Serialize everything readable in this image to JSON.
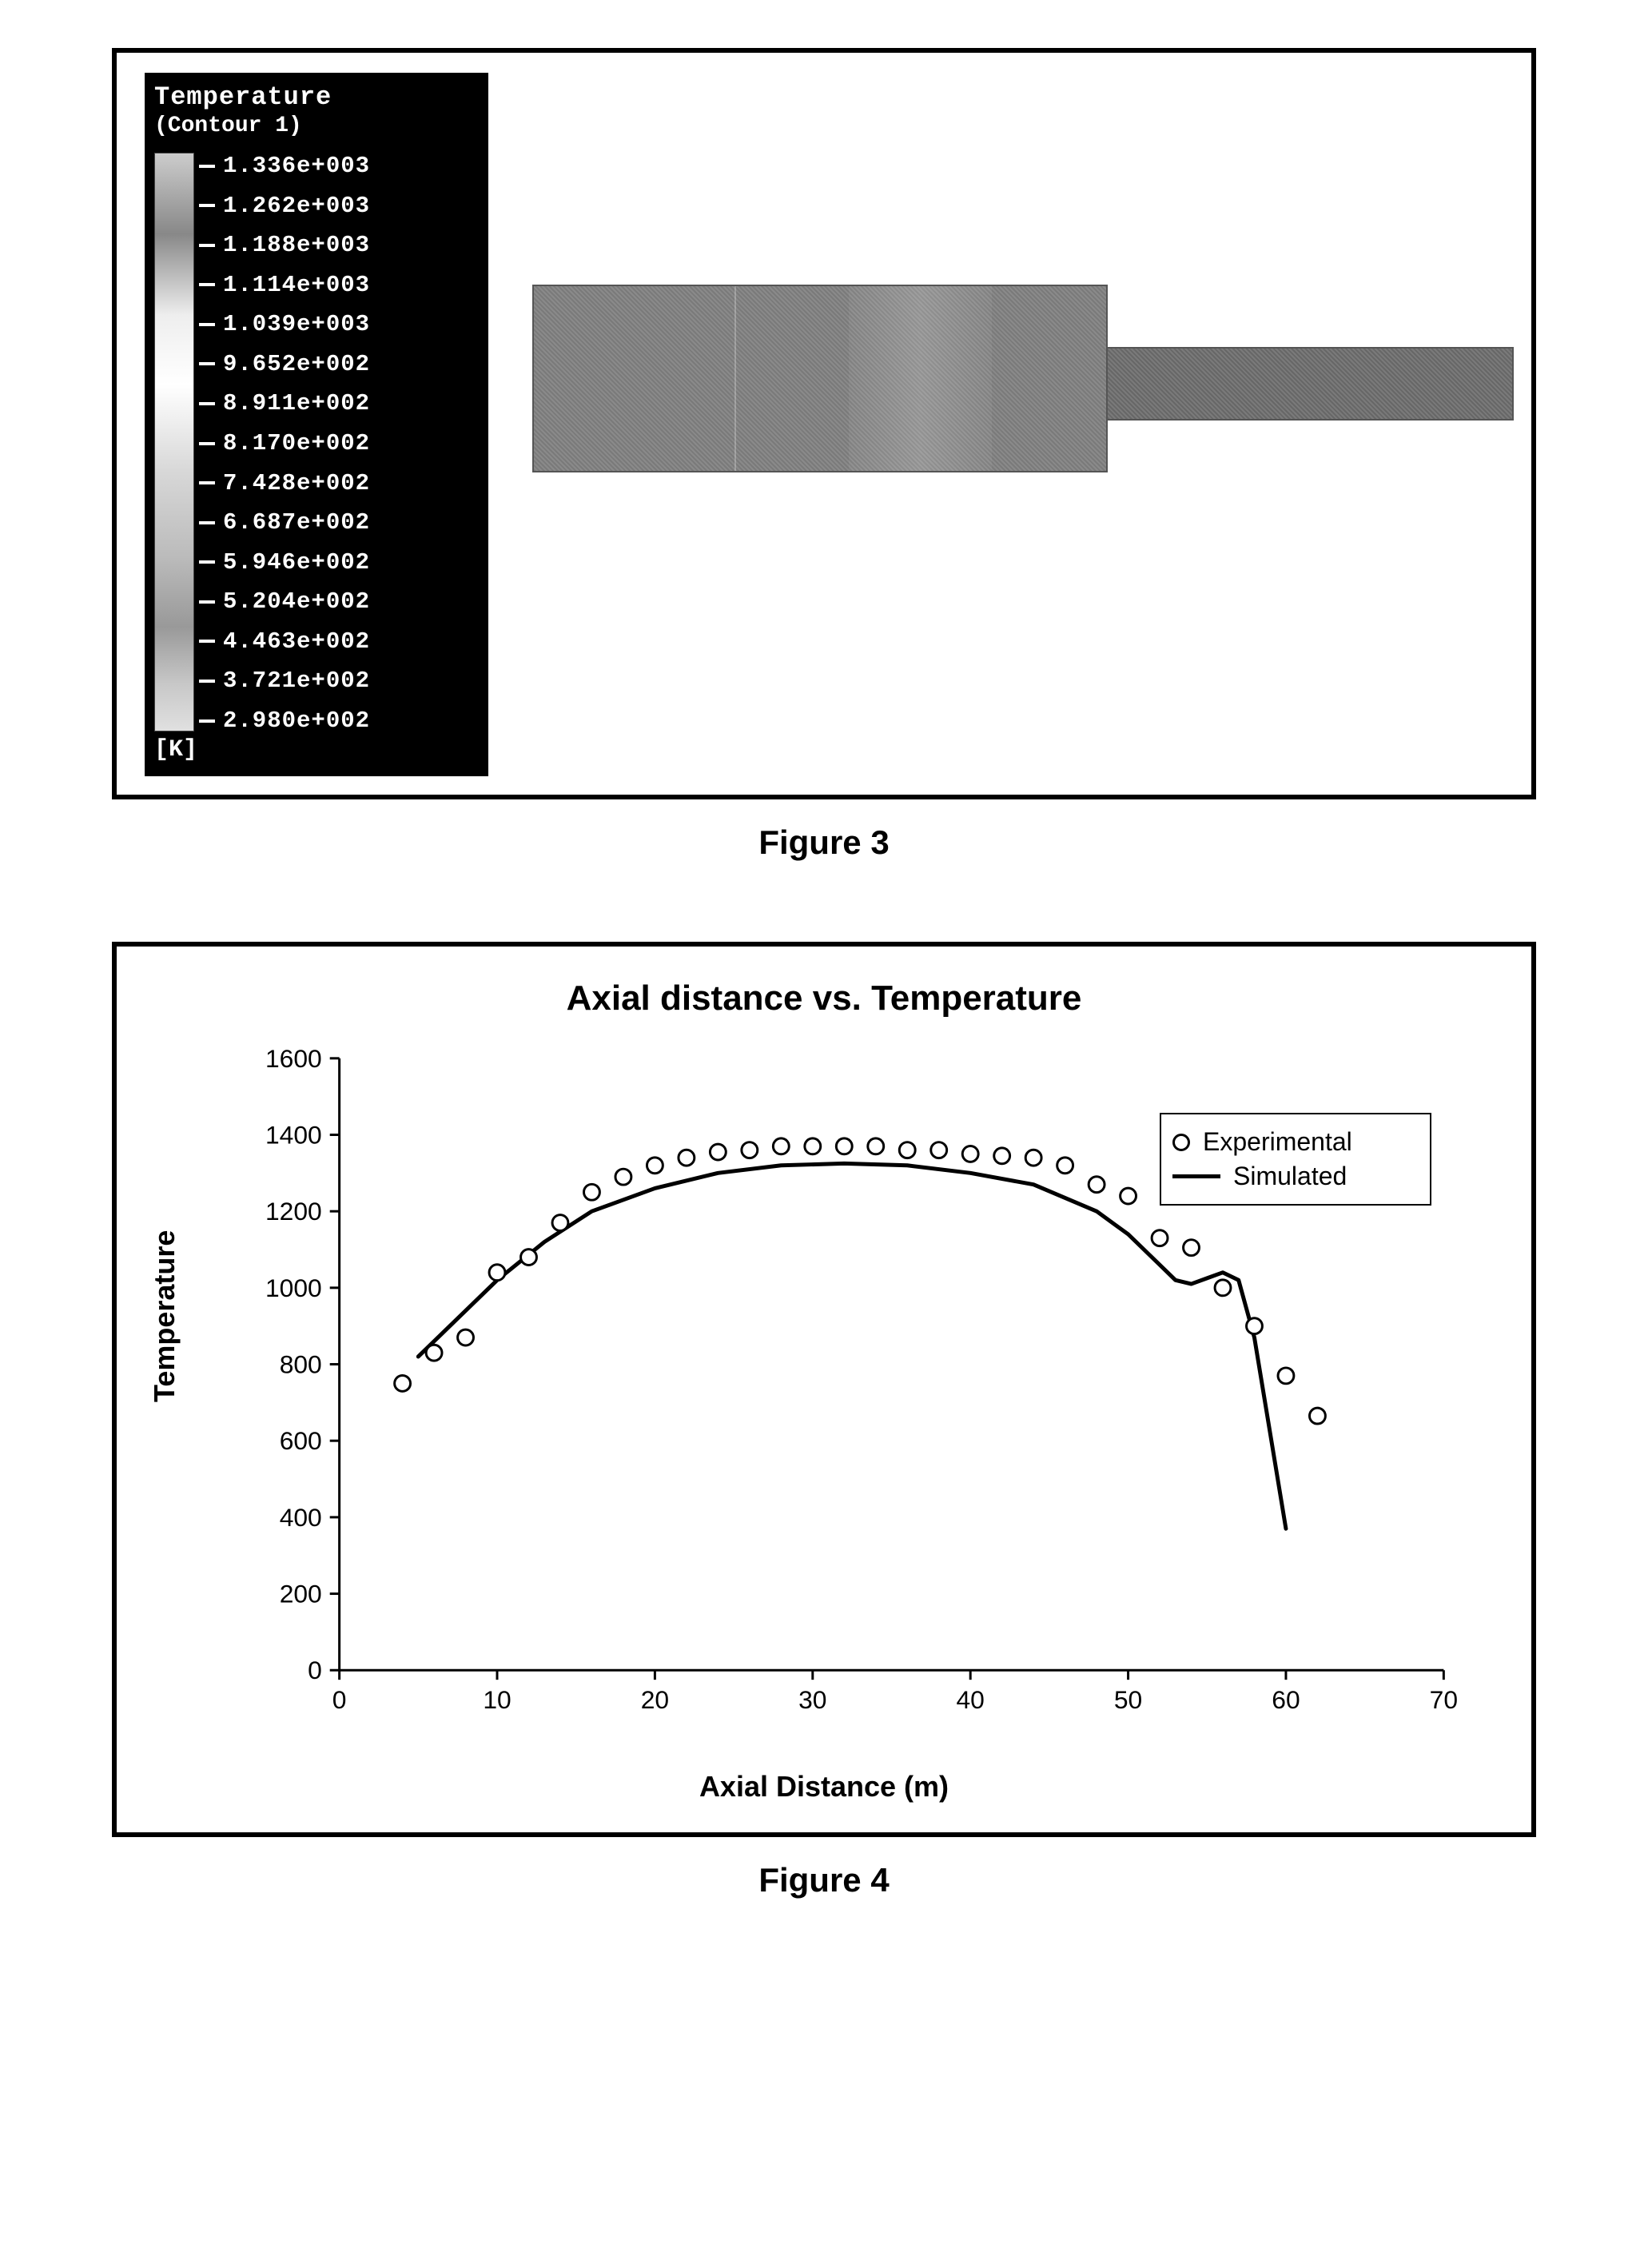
{
  "figure3": {
    "legend": {
      "title": "Temperature",
      "subtitle": "(Contour 1)",
      "unit": "[K]",
      "values": [
        "1.336e+003",
        "1.262e+003",
        "1.188e+003",
        "1.114e+003",
        "1.039e+003",
        "9.652e+002",
        "8.911e+002",
        "8.170e+002",
        "7.428e+002",
        "6.687e+002",
        "5.946e+002",
        "5.204e+002",
        "4.463e+002",
        "3.721e+002",
        "2.980e+002"
      ]
    },
    "caption": "Figure 3"
  },
  "figure4": {
    "title": "Axial distance vs. Temperature",
    "ylabel": "Temperature",
    "xlabel": "Axial Distance (m)",
    "caption": "Figure 4",
    "xlim": [
      0,
      70
    ],
    "ylim": [
      0,
      1600
    ],
    "xticks": [
      0,
      10,
      20,
      30,
      40,
      50,
      60,
      70
    ],
    "yticks": [
      0,
      200,
      400,
      600,
      800,
      1000,
      1200,
      1400,
      1600
    ],
    "legend": {
      "experimental": "Experimental",
      "simulated": "Simulated"
    },
    "series": {
      "experimental": {
        "type": "scatter",
        "marker": "circle",
        "marker_size": 10,
        "marker_stroke": "#000000",
        "marker_fill": "#ffffff",
        "x": [
          4,
          6,
          8,
          10,
          12,
          14,
          16,
          18,
          20,
          22,
          24,
          26,
          28,
          30,
          32,
          34,
          36,
          38,
          40,
          42,
          44,
          46,
          48,
          50,
          52,
          54,
          56,
          58,
          60,
          62
        ],
        "y": [
          750,
          830,
          870,
          1040,
          1080,
          1170,
          1250,
          1290,
          1320,
          1340,
          1355,
          1360,
          1370,
          1370,
          1370,
          1370,
          1360,
          1360,
          1350,
          1345,
          1340,
          1320,
          1270,
          1240,
          1130,
          1105,
          1000,
          900,
          770,
          665
        ]
      },
      "simulated": {
        "type": "line",
        "line_width": 5,
        "line_color": "#000000",
        "x": [
          5,
          7,
          10,
          13,
          16,
          20,
          24,
          28,
          32,
          36,
          40,
          44,
          48,
          50,
          52,
          53,
          54,
          55,
          56,
          57,
          58,
          59,
          60
        ],
        "y": [
          820,
          900,
          1020,
          1120,
          1200,
          1260,
          1300,
          1320,
          1325,
          1320,
          1300,
          1270,
          1200,
          1140,
          1060,
          1020,
          1010,
          1025,
          1040,
          1020,
          870,
          620,
          370
        ]
      }
    },
    "plot_style": {
      "background": "#ffffff",
      "axis_color": "#000000",
      "tick_fontsize": 32,
      "label_fontsize": 36,
      "title_fontsize": 44
    }
  }
}
